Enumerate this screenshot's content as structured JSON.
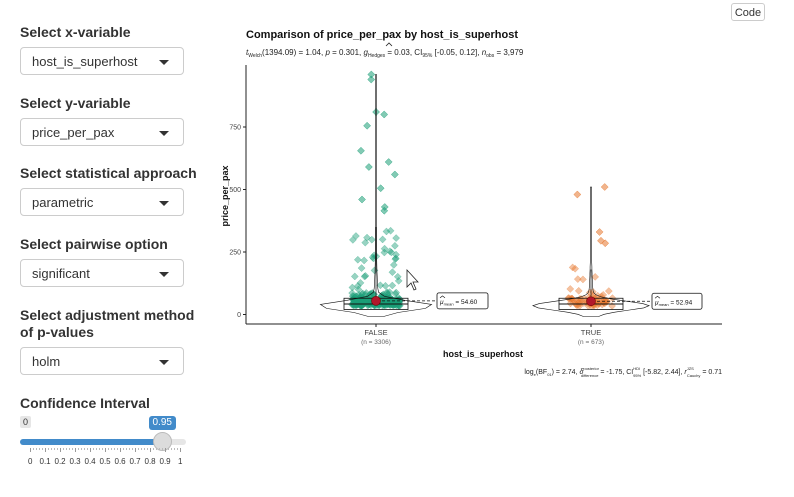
{
  "sidebar": {
    "x_label": "Select x-variable",
    "x_value": "host_is_superhost",
    "y_label": "Select y-variable",
    "y_value": "price_per_pax",
    "approach_label": "Select statistical approach",
    "approach_value": "parametric",
    "pairwise_label": "Select pairwise option",
    "pairwise_value": "significant",
    "adjust_label_1": "Select adjustment method",
    "adjust_label_2": "of p-values",
    "adjust_value": "holm",
    "ci_label": "Confidence Interval",
    "ci_min_badge": "0",
    "ci_value": "0.95",
    "ci_fraction": 0.95,
    "ci_ticks": [
      "0",
      "0.1",
      "0.2",
      "0.3",
      "0.4",
      "0.5",
      "0.6",
      "0.7",
      "0.8",
      "0.9",
      "1"
    ]
  },
  "code_button": "Code",
  "chart_data": {
    "type": "violin",
    "title": "Comparison of  price_per_pax  by  host_is_superhost",
    "subtitle": {
      "welch": "Welch",
      "sub_p1": "(1394.09) = 1.04, ",
      "sub_p2": " = 0.301, ",
      "hedges": "Hedges",
      "sub_p3": " = 0.03, CI",
      "ci_sub": "95%",
      "sub_p4": " [-0.05, 0.12], ",
      "obs": "obs",
      "sub_p5": " = 3,979"
    },
    "caption": {
      "c1": "log",
      "c1sub": "e",
      "c2": "(BF",
      "c2sub": "01",
      "c3": ") = 2.74, ",
      "c3sup": "posterior",
      "c3sub": "difference",
      "c4": " = -1.75, CI",
      "c4sup": "HDI",
      "c4sub": "95%",
      "c5": " [-5.82, 2.44], ",
      "c5sup": "JZS",
      "c5sub": "Cauchy",
      "c6": " = 0.71"
    },
    "xlabel": "host_is_superhost",
    "ylabel": "price_per_pax",
    "y_ticks": [
      0,
      250,
      500,
      750
    ],
    "ylim": [
      -30,
      970
    ],
    "groups": [
      {
        "name": "FALSE",
        "n_label": "(n = 3306)",
        "n": 3306,
        "mean": 54.6,
        "mean_label": "= 54.60",
        "mean_sub": "mean",
        "color": "#1b9e77",
        "max": 960
      },
      {
        "name": "TRUE",
        "n_label": "(n = 673)",
        "n": 673,
        "mean": 52.94,
        "mean_label": "= 52.94",
        "mean_sub": "mean",
        "color": "#e6772e",
        "max": 510
      }
    ],
    "mean_point_color": "#b2182b"
  }
}
